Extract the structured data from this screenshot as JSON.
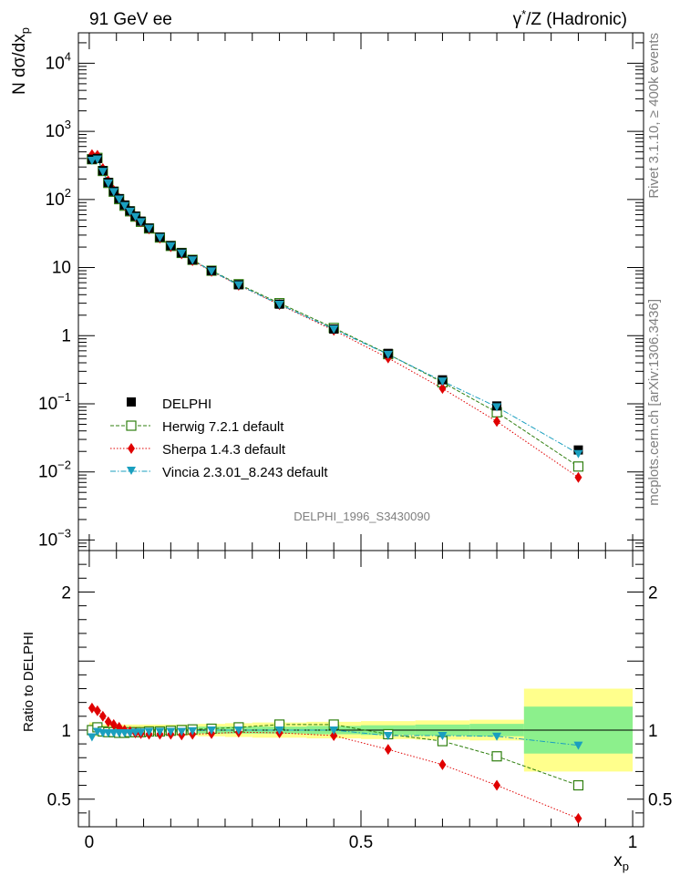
{
  "header": {
    "left_title": "91 GeV ee",
    "right_title_prefix": "γ",
    "right_title_sup": "*",
    "right_title_suffix": "/Z (Hadronic)"
  },
  "side_text": {
    "rivet": "Rivet 3.1.10, ≥ 400k events",
    "source": "mcplots.cern.ch [arXiv:1306.3436]"
  },
  "analysis_label": "DELPHI_1996_S3430090",
  "axes": {
    "top_ylabel_main": "N dσ/dx",
    "top_ylabel_sub": "p",
    "bottom_ylabel": "Ratio to DELPHI",
    "xlabel_main": "x",
    "xlabel_sub": "p"
  },
  "legend": [
    {
      "key": "data",
      "label": "DELPHI"
    },
    {
      "key": "herwig",
      "label": "Herwig 7.2.1 default"
    },
    {
      "key": "sherpa",
      "label": "Sherpa 1.4.3 default"
    },
    {
      "key": "vincia",
      "label": "Vincia 2.3.01_8.243 default"
    }
  ],
  "colors": {
    "data": "#000000",
    "herwig": "#2f7f0f",
    "sherpa": "#e00000",
    "vincia": "#1a9fbf",
    "band_inner": "#8cf08c",
    "band_outer": "#ffff8c"
  },
  "chart_data": [
    {
      "type": "scatter",
      "title": "",
      "xlabel": "x_p",
      "ylabel": "N dσ/dx_p",
      "yscale": "log",
      "xlim": [
        -0.02,
        1.02
      ],
      "ylim": [
        0.0007,
        28000
      ],
      "yticks": [
        {
          "v": 0.001,
          "base": "10",
          "exp": "−3"
        },
        {
          "v": 0.01,
          "base": "10",
          "exp": "−2"
        },
        {
          "v": 0.1,
          "base": "10",
          "exp": "−1"
        },
        {
          "v": 1,
          "base": "1",
          "exp": ""
        },
        {
          "v": 10,
          "base": "10",
          "exp": ""
        },
        {
          "v": 100,
          "base": "10",
          "exp": "2"
        },
        {
          "v": 1000,
          "base": "10",
          "exp": "3"
        },
        {
          "v": 10000,
          "base": "10",
          "exp": "4"
        }
      ],
      "x": [
        0.005,
        0.015,
        0.025,
        0.035,
        0.045,
        0.055,
        0.065,
        0.075,
        0.085,
        0.095,
        0.11,
        0.13,
        0.15,
        0.17,
        0.19,
        0.225,
        0.275,
        0.35,
        0.45,
        0.55,
        0.65,
        0.75,
        0.9
      ],
      "series": [
        {
          "name": "DELPHI",
          "key": "data",
          "values": [
            390,
            400,
            265,
            178,
            132,
            103,
            83,
            68,
            57,
            48,
            38,
            28,
            21,
            16.5,
            13,
            9,
            5.6,
            2.9,
            1.25,
            0.55,
            0.225,
            0.093,
            0.021
          ]
        },
        {
          "name": "Herwig 7.2.1 default",
          "key": "herwig",
          "values": [
            390,
            408,
            262,
            175,
            130,
            101,
            81,
            67,
            56,
            47,
            37.5,
            27.6,
            20.8,
            16.4,
            13,
            9,
            5.7,
            3.0,
            1.3,
            0.535,
            0.207,
            0.075,
            0.012
          ]
        },
        {
          "name": "Sherpa 1.4.3 default",
          "key": "sherpa",
          "values": [
            455,
            445,
            285,
            187,
            136,
            104,
            82,
            67,
            56,
            47,
            37,
            27.2,
            20.3,
            15.9,
            12.6,
            8.8,
            5.5,
            2.85,
            1.2,
            0.47,
            0.168,
            0.055,
            0.0083
          ]
        },
        {
          "name": "Vincia 2.3.01_8.243 default",
          "key": "vincia",
          "values": [
            375,
            390,
            258,
            174,
            130,
            101,
            81,
            67,
            56,
            47,
            37.5,
            27.7,
            20.8,
            16.3,
            12.9,
            8.9,
            5.55,
            2.88,
            1.25,
            0.53,
            0.215,
            0.09,
            0.0185
          ]
        }
      ]
    },
    {
      "type": "line",
      "title": "",
      "xlabel": "x_p",
      "ylabel": "Ratio to DELPHI",
      "xlim": [
        -0.02,
        1.02
      ],
      "ylim": [
        0.3,
        2.3
      ],
      "yticks": [
        {
          "v": 0.5,
          "label": "0.5"
        },
        {
          "v": 1,
          "label": "1"
        },
        {
          "v": 2,
          "label": "2"
        }
      ],
      "xticks": [
        {
          "v": 0,
          "label": "0"
        },
        {
          "v": 0.5,
          "label": "0.5"
        },
        {
          "v": 1,
          "label": "1"
        }
      ],
      "x": [
        0.005,
        0.015,
        0.025,
        0.035,
        0.045,
        0.055,
        0.065,
        0.075,
        0.085,
        0.095,
        0.11,
        0.13,
        0.15,
        0.17,
        0.19,
        0.225,
        0.275,
        0.35,
        0.45,
        0.55,
        0.65,
        0.75,
        0.9
      ],
      "series": [
        {
          "name": "Herwig 7.2.1 default",
          "key": "herwig",
          "values": [
            1.0,
            1.02,
            0.99,
            0.985,
            0.985,
            0.98,
            0.98,
            0.985,
            0.985,
            0.985,
            0.99,
            0.99,
            0.995,
            1.0,
            1.005,
            1.01,
            1.02,
            1.04,
            1.04,
            0.97,
            0.92,
            0.81,
            0.6
          ]
        },
        {
          "name": "Sherpa 1.4.3 default",
          "key": "sherpa",
          "values": [
            1.16,
            1.14,
            1.1,
            1.06,
            1.04,
            1.02,
            1.0,
            0.99,
            0.98,
            0.975,
            0.97,
            0.97,
            0.97,
            0.965,
            0.97,
            0.975,
            0.985,
            0.98,
            0.96,
            0.86,
            0.75,
            0.6,
            0.36
          ]
        },
        {
          "name": "Vincia 2.3.01_8.243 default",
          "key": "vincia",
          "values": [
            0.95,
            0.99,
            0.98,
            0.98,
            0.98,
            0.98,
            0.98,
            0.98,
            0.985,
            0.985,
            0.99,
            0.99,
            0.99,
            0.99,
            0.995,
            1.0,
            1.0,
            1.0,
            1.0,
            0.96,
            0.96,
            0.955,
            0.89
          ]
        }
      ],
      "bands": {
        "edges": [
          0.0,
          0.01,
          0.02,
          0.03,
          0.04,
          0.05,
          0.06,
          0.07,
          0.08,
          0.09,
          0.1,
          0.12,
          0.14,
          0.16,
          0.18,
          0.2,
          0.25,
          0.3,
          0.4,
          0.5,
          0.6,
          0.7,
          0.8,
          1.0
        ],
        "inner": [
          0.03,
          0.025,
          0.02,
          0.02,
          0.02,
          0.02,
          0.02,
          0.02,
          0.02,
          0.02,
          0.02,
          0.02,
          0.02,
          0.02,
          0.02,
          0.025,
          0.025,
          0.025,
          0.03,
          0.035,
          0.04,
          0.045,
          0.17
        ],
        "outer": [
          0.055,
          0.045,
          0.04,
          0.04,
          0.04,
          0.04,
          0.04,
          0.04,
          0.04,
          0.04,
          0.04,
          0.04,
          0.04,
          0.04,
          0.04,
          0.045,
          0.05,
          0.055,
          0.06,
          0.065,
          0.07,
          0.075,
          0.3
        ]
      }
    }
  ]
}
